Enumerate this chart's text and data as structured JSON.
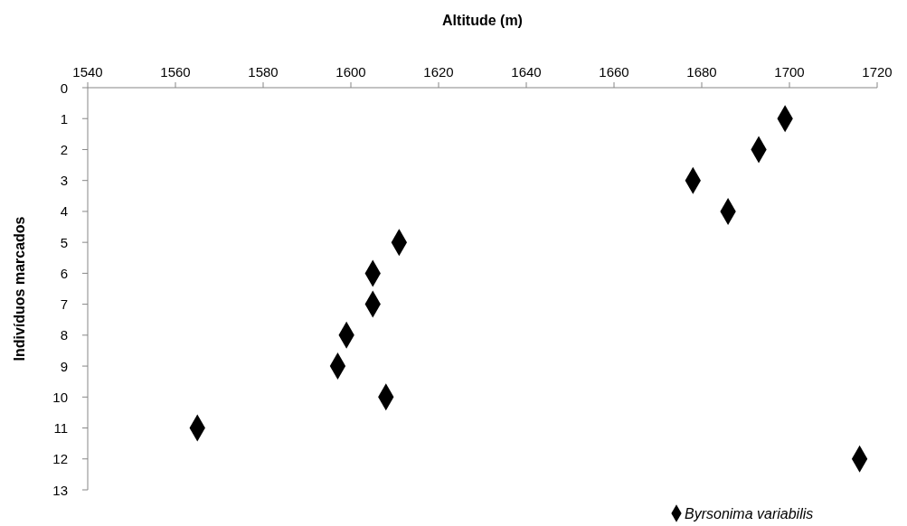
{
  "chart_data": {
    "type": "scatter",
    "xlabel": "Altitude (m)",
    "ylabel": "Indivíduos marcados",
    "xlim": [
      1540,
      1720
    ],
    "xticks": [
      1540,
      1560,
      1580,
      1600,
      1620,
      1640,
      1660,
      1680,
      1700,
      1720
    ],
    "ylim": [
      13,
      0
    ],
    "yticks": [
      0,
      1,
      2,
      3,
      4,
      5,
      6,
      7,
      8,
      9,
      10,
      11,
      12,
      13
    ],
    "series": [
      {
        "name": "Byrsonima variabilis",
        "color": "#000000",
        "x": [
          1699,
          1693,
          1678,
          1686,
          1611,
          1605,
          1605,
          1599,
          1597,
          1608,
          1565,
          1716
        ],
        "values": [
          1,
          2,
          3,
          4,
          5,
          6,
          7,
          8,
          9,
          10,
          11,
          12
        ]
      }
    ],
    "marker": "diamond",
    "legend": "bottom right",
    "grid": false
  }
}
